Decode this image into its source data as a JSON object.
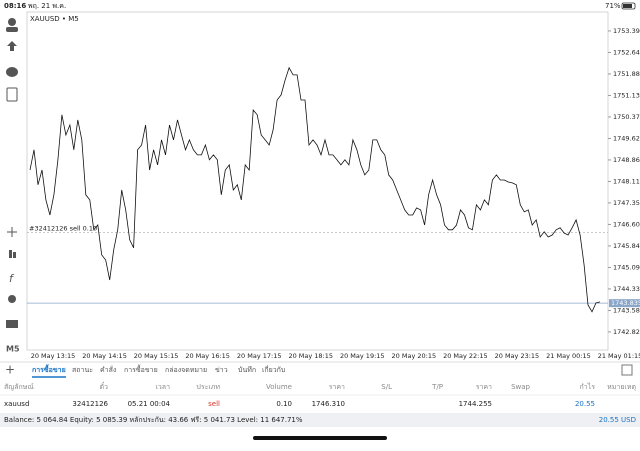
{
  "status_bar": {
    "time": "08:16",
    "date": "พฤ. 21 พ.ค.",
    "battery": "71%"
  },
  "chart_data": {
    "type": "line",
    "title": "XAUUSD • M5",
    "color": "#111111",
    "values": [
      1748.51,
      1749.22,
      1747.99,
      1748.51,
      1747.46,
      1746.93,
      1747.64,
      1748.87,
      1750.45,
      1749.74,
      1750.09,
      1749.22,
      1750.27,
      1749.57,
      1747.64,
      1747.46,
      1746.41,
      1746.58,
      1745.53,
      1745.35,
      1744.65,
      1745.71,
      1746.41,
      1747.81,
      1747.11,
      1746.06,
      1745.78,
      1749.22,
      1749.39,
      1750.09,
      1748.51,
      1749.22,
      1748.69,
      1749.57,
      1749.04,
      1750.09,
      1749.57,
      1750.27,
      1749.74,
      1749.22,
      1749.57,
      1749.22,
      1749.04,
      1749.04,
      1749.39,
      1748.87,
      1749.04,
      1748.87,
      1747.64,
      1748.51,
      1748.69,
      1747.81,
      1747.99,
      1747.46,
      1748.69,
      1748.51,
      1750.62,
      1750.45,
      1749.74,
      1749.57,
      1749.39,
      1749.92,
      1750.97,
      1751.15,
      1751.67,
      1752.1,
      1751.85,
      1751.85,
      1750.97,
      1750.97,
      1749.39,
      1749.57,
      1749.39,
      1749.04,
      1749.57,
      1749.04,
      1749.04,
      1748.87,
      1748.69,
      1748.87,
      1748.69,
      1749.57,
      1749.22,
      1748.69,
      1748.34,
      1748.51,
      1749.57,
      1749.57,
      1749.22,
      1749.04,
      1748.34,
      1748.16,
      1747.81,
      1747.46,
      1747.11,
      1746.93,
      1746.93,
      1747.18,
      1747.11,
      1746.58,
      1747.64,
      1748.16,
      1747.64,
      1747.29,
      1746.58,
      1746.41,
      1746.41,
      1746.58,
      1747.11,
      1746.93,
      1746.48,
      1746.41,
      1747.29,
      1747.11,
      1747.46,
      1747.29,
      1748.16,
      1748.34,
      1748.16,
      1748.16,
      1748.09,
      1748.06,
      1747.99,
      1747.29,
      1747.04,
      1747.11,
      1746.58,
      1746.76,
      1746.16,
      1746.34,
      1746.16,
      1746.23,
      1746.41,
      1746.48,
      1746.3,
      1746.23,
      1746.48,
      1746.76,
      1746.23,
      1745.18,
      1743.77,
      1743.53,
      1743.84,
      1743.88
    ],
    "ylim": [
      1742.19,
      1754.06
    ],
    "yticks": [
      1753.395,
      1752.64,
      1751.885,
      1751.13,
      1750.375,
      1749.62,
      1748.865,
      1748.11,
      1747.355,
      1746.6,
      1745.845,
      1745.09,
      1744.335,
      1743.58,
      1742.825
    ],
    "ytick_labels": [
      "1753.395",
      "1752.640",
      "1751.885",
      "1751.130",
      "1750.375",
      "1749.620",
      "1748.865",
      "1748.110",
      "1747.355",
      "1746.600",
      "1745.845",
      "1745.090",
      "1744.335",
      "1743.580",
      "1742.825"
    ],
    "xlabels": [
      "20 May 13:15",
      "20 May 14:15",
      "20 May 15:15",
      "20 May 16:15",
      "20 May 17:15",
      "20 May 18:15",
      "20 May 19:15",
      "20 May 20:15",
      "20 May 22:15",
      "20 May 23:15",
      "21 May 00:15",
      "21 May 01:15"
    ],
    "current_price": {
      "value": 1743.835,
      "label": "1743.835"
    },
    "order_line": {
      "value": 1746.31,
      "label": "#32412126 sell 0.10"
    }
  },
  "tabs": [
    "การซื้อขาย",
    "สถานะ",
    "คำสั่ง",
    "การซื้อขาย",
    "กล่องจดหมาย",
    "ข่าว",
    "บันทึก",
    "เกี่ยวกับ"
  ],
  "table": {
    "header": [
      "สัญลักษณ์",
      "ตั๋ว",
      "เวลา",
      "ประเภท",
      "Volume",
      "ราคา",
      "S/L",
      "T/P",
      "ราคา",
      "Swap",
      "กำไร",
      "หมายเหตุ"
    ],
    "row": [
      "xauusd",
      "32412126",
      "05.21 00:04",
      "sell",
      "0.10",
      "1746.310",
      "1744.255",
      "20.55"
    ]
  },
  "total": "20.55 USD",
  "balance": "Balance: 5 064.84 Equity: 5 085.39 หลักประกัน: 43.66 ฟรี: 5 041.73 Level: 11 647.71%"
}
